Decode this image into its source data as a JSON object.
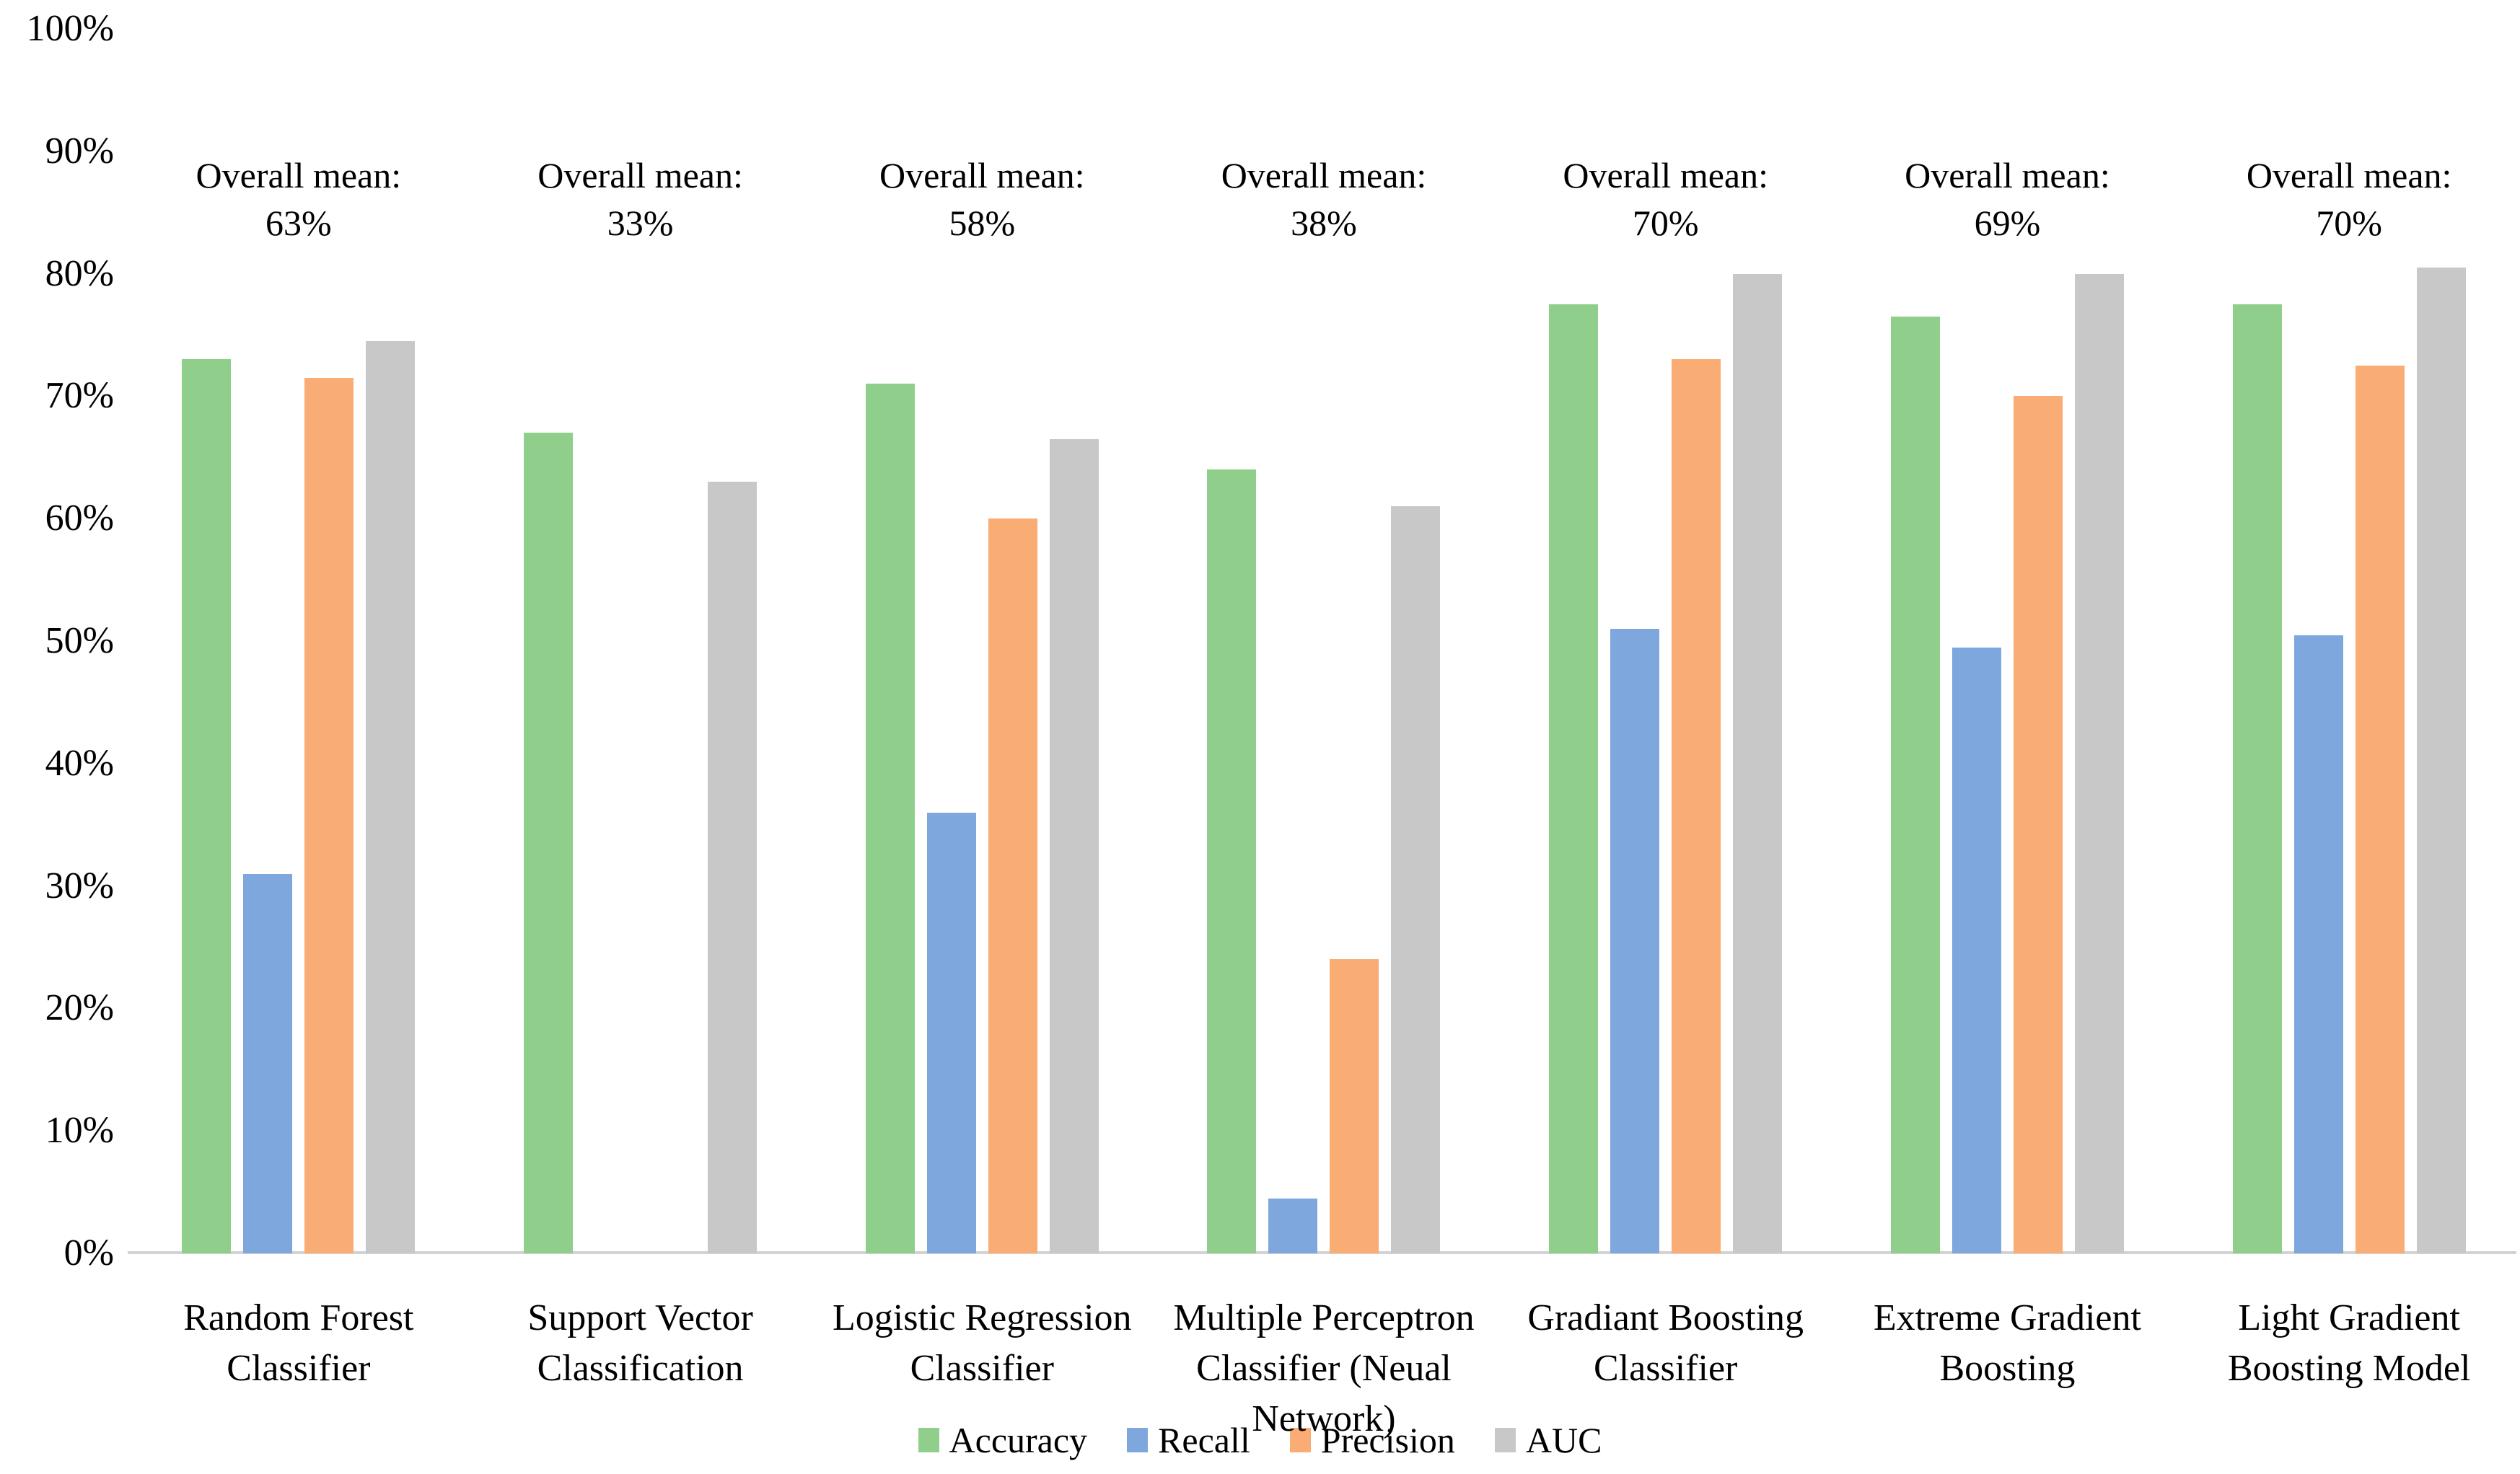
{
  "chart_data": {
    "type": "bar",
    "title": "",
    "xlabel": "",
    "ylabel": "",
    "ylim": [
      0,
      100
    ],
    "grid": false,
    "legend_position": "bottom",
    "y_tick_labels": [
      "100%",
      "90%",
      "80%",
      "70%",
      "60%",
      "50%",
      "40%",
      "30%",
      "20%",
      "10%",
      "0%"
    ],
    "categories": [
      "Random Forest Classifier",
      "Support Vector Classification",
      "Logistic Regression Classifier",
      "Multiple Perceptron Classifier (Neual Network)",
      "Gradiant Boosting Classifier",
      "Extreme Gradient Boosting",
      "Light Gradient Boosting Model"
    ],
    "category_label_lines": [
      [
        "Random Forest",
        "Classifier"
      ],
      [
        "Support Vector",
        "Classification"
      ],
      [
        "Logistic Regression",
        "Classifier"
      ],
      [
        "Multiple Perceptron",
        "Classifier (Neual",
        "Network)"
      ],
      [
        "Gradiant Boosting",
        "Classifier"
      ],
      [
        "Extreme Gradient",
        "Boosting"
      ],
      [
        "Light Gradient",
        "Boosting Model"
      ]
    ],
    "annotation_label": "Overall mean:",
    "overall_means": [
      "63%",
      "33%",
      "58%",
      "38%",
      "70%",
      "69%",
      "70%"
    ],
    "series": [
      {
        "name": "Accuracy",
        "color": "#8FCE8B",
        "values": [
          73,
          67,
          71,
          64,
          77.5,
          76.5,
          77.5
        ]
      },
      {
        "name": "Recall",
        "color": "#7DA7DD",
        "values": [
          31,
          0,
          36,
          4.5,
          51,
          49.5,
          50.5
        ]
      },
      {
        "name": "Precision",
        "color": "#FAAC75",
        "values": [
          71.5,
          0,
          60,
          24,
          73,
          70,
          72.5
        ]
      },
      {
        "name": "AUC",
        "color": "#C8C8C8",
        "values": [
          74.5,
          63,
          66.5,
          61,
          80,
          80,
          80.5
        ]
      }
    ]
  },
  "colors": {
    "background": "#FFFFFF",
    "text": "#000000",
    "axis_line": "#D3D3D3"
  }
}
